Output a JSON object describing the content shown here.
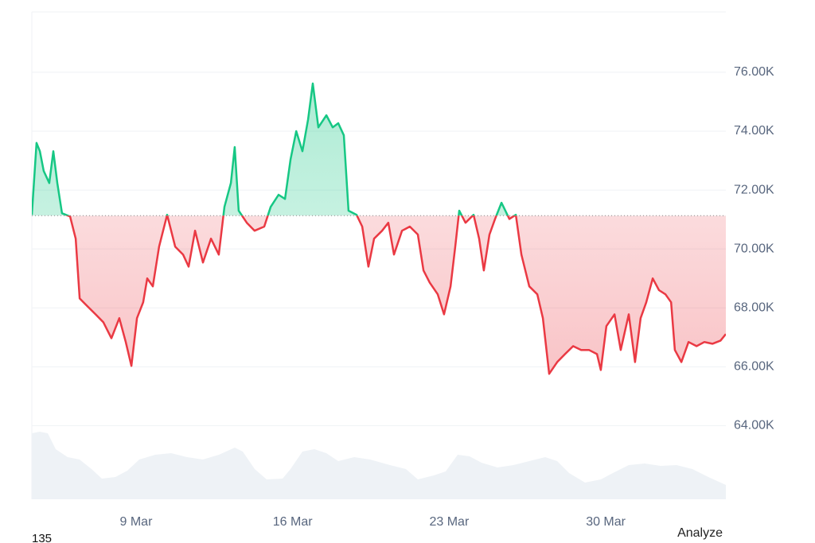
{
  "chart_data": {
    "type": "line",
    "x": [
      4.34,
      4.55,
      4.7,
      4.87,
      5.12,
      5.3,
      5.48,
      5.69,
      6.05,
      6.3,
      6.48,
      6.83,
      7.19,
      7.54,
      7.9,
      8.25,
      8.54,
      8.79,
      9.04,
      9.32,
      9.5,
      9.75,
      10.03,
      10.39,
      10.75,
      11.1,
      11.35,
      11.64,
      11.99,
      12.35,
      12.7,
      12.95,
      13.24,
      13.41,
      13.59,
      13.95,
      14.3,
      14.73,
      15.02,
      15.37,
      15.66,
      15.91,
      16.16,
      16.44,
      16.69,
      16.9,
      17.15,
      17.51,
      17.79,
      18.04,
      18.29,
      18.5,
      18.86,
      19.11,
      19.39,
      19.64,
      20.0,
      20.28,
      20.53,
      20.89,
      21.24,
      21.6,
      21.85,
      22.13,
      22.49,
      22.77,
      23.06,
      23.27,
      23.45,
      23.73,
      24.09,
      24.34,
      24.55,
      24.8,
      25.05,
      25.34,
      25.69,
      25.98,
      26.23,
      26.58,
      26.94,
      27.19,
      27.47,
      27.83,
      28.18,
      28.54,
      28.9,
      29.25,
      29.61,
      29.78,
      30.03,
      30.39,
      30.67,
      31.03,
      31.31,
      31.56,
      31.81,
      32.1,
      32.38,
      32.67,
      32.92,
      33.09,
      33.38,
      33.7,
      34.06,
      34.41,
      34.77,
      35.13,
      35.37
    ],
    "values": [
      71160,
      73600,
      73320,
      72650,
      72240,
      73320,
      72240,
      71215,
      71100,
      70350,
      68320,
      68050,
      67780,
      67510,
      66970,
      67650,
      66840,
      66030,
      67650,
      68190,
      69000,
      68730,
      70080,
      71160,
      70080,
      69810,
      69400,
      70620,
      69540,
      70350,
      69810,
      71430,
      72240,
      73460,
      71300,
      70890,
      70620,
      70760,
      71430,
      71840,
      71700,
      73050,
      74000,
      73320,
      74400,
      75620,
      74130,
      74540,
      74130,
      74270,
      73860,
      71300,
      71160,
      70760,
      69400,
      70350,
      70620,
      70890,
      69810,
      70620,
      70760,
      70490,
      69270,
      68860,
      68460,
      67780,
      68730,
      70080,
      71300,
      70890,
      71160,
      70350,
      69270,
      70490,
      71020,
      71570,
      71020,
      71160,
      69810,
      68730,
      68460,
      67650,
      65760,
      66160,
      66430,
      66700,
      66570,
      66570,
      66430,
      65890,
      67380,
      67780,
      66570,
      67780,
      66160,
      67650,
      68190,
      69000,
      68600,
      68460,
      68190,
      66570,
      66160,
      66840,
      66700,
      66840,
      66780,
      66890,
      67110
    ],
    "baseline": 71130,
    "up_color": "#16c784",
    "down_color": "#ea3943",
    "xlim": [
      4.34,
      35.37
    ],
    "xticks": [
      {
        "value": 9,
        "label": "9 Mar"
      },
      {
        "value": 16,
        "label": "16 Mar"
      },
      {
        "value": 23,
        "label": "23 Mar"
      },
      {
        "value": 30,
        "label": "30 Mar"
      }
    ],
    "ylim": [
      61500,
      78050
    ],
    "yticks": [
      {
        "value": 64000,
        "label": "64.00K"
      },
      {
        "value": 66000,
        "label": "66.00K"
      },
      {
        "value": 68000,
        "label": "68.00K"
      },
      {
        "value": 70000,
        "label": "70.00K"
      },
      {
        "value": 72000,
        "label": "72.00K"
      },
      {
        "value": 74000,
        "label": "74.00K"
      },
      {
        "value": 76000,
        "label": "76.00K"
      }
    ],
    "grid": true,
    "corner_label": "135",
    "action_label": "Analyze"
  }
}
